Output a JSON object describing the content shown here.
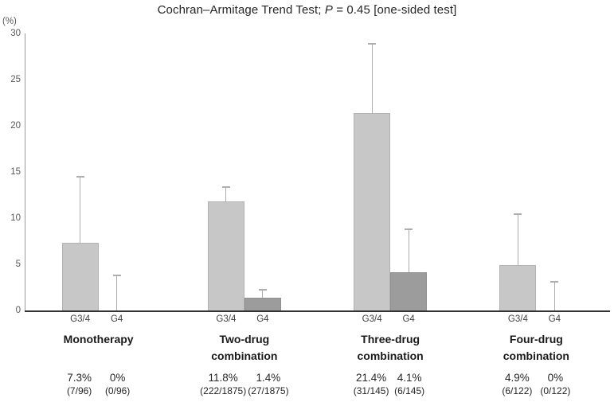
{
  "title": {
    "prefix": "Cochran–Armitage Trend Test; ",
    "p": "P",
    "suffix": " = 0.45 [one-sided test]"
  },
  "y_axis": {
    "unit_label": "(%)",
    "ticks": [
      0,
      5,
      10,
      15,
      20,
      25,
      30
    ]
  },
  "chart_data": {
    "type": "bar",
    "title": "Cochran–Armitage Trend Test; P = 0.45 [one-sided test]",
    "ylabel": "(%)",
    "ylim": [
      0,
      30
    ],
    "grid": false,
    "legend": "none",
    "bar_tick_labels": [
      "G3/4",
      "G4"
    ],
    "categories": [
      "Monotherapy",
      "Two-drug combination",
      "Three-drug combination",
      "Four-drug combination"
    ],
    "category_label_lines": [
      [
        "Monotherapy"
      ],
      [
        "Two-drug",
        "combination"
      ],
      [
        "Three-drug",
        "combination"
      ],
      [
        "Four-drug",
        "combination"
      ]
    ],
    "series": [
      {
        "name": "G3/4",
        "color": "#c7c7c7",
        "border_color": "#b2b2b2",
        "values": [
          7.3,
          11.8,
          21.4,
          4.9
        ],
        "error_upper": [
          14.5,
          13.4,
          28.9,
          10.4
        ],
        "percent_labels": [
          "7.3%",
          "11.8%",
          "21.4%",
          "4.9%"
        ],
        "fraction_labels": [
          "(7/96)",
          "(222/1875)",
          "(31/145)",
          "(6/122)"
        ]
      },
      {
        "name": "G4",
        "color": "#9c9c9c",
        "border_color": "#8f8f8f",
        "values": [
          0,
          1.4,
          4.1,
          0
        ],
        "error_upper": [
          3.8,
          2.2,
          8.8,
          3.1
        ],
        "percent_labels": [
          "0%",
          "1.4%",
          "4.1%",
          "0%"
        ],
        "fraction_labels": [
          "(0/96)",
          "(27/1875)",
          "(6/145)",
          "(0/122)"
        ]
      }
    ],
    "error_bar_color": "#adadad"
  }
}
